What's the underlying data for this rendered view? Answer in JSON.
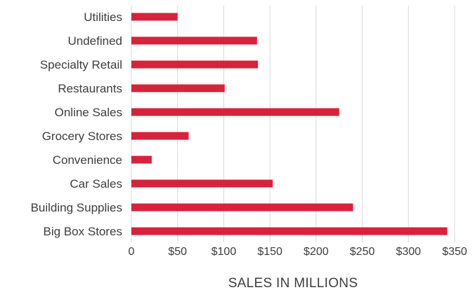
{
  "chart_data": {
    "type": "bar",
    "orientation": "horizontal",
    "title": "",
    "xlabel": "SALES IN MILLIONS",
    "ylabel": "",
    "categories": [
      "Utilities",
      "Undefined",
      "Specialty Retail",
      "Restaurants",
      "Online Sales",
      "Grocery Stores",
      "Convenience",
      "Car Sales",
      "Building Supplies",
      "Big Box Stores"
    ],
    "values": [
      50,
      136,
      137,
      101,
      225,
      62,
      22,
      153,
      240,
      342
    ],
    "xlim": [
      0,
      350
    ],
    "ticks": [
      0,
      50,
      100,
      150,
      200,
      250,
      300,
      350
    ],
    "tick_labels": [
      "0",
      "$50",
      "$100",
      "$150",
      "$200",
      "$250",
      "$300",
      "$350"
    ],
    "bar_color": "#d7223b",
    "grid": true,
    "gridline_color": "#d9d9d9",
    "legend": "none"
  }
}
